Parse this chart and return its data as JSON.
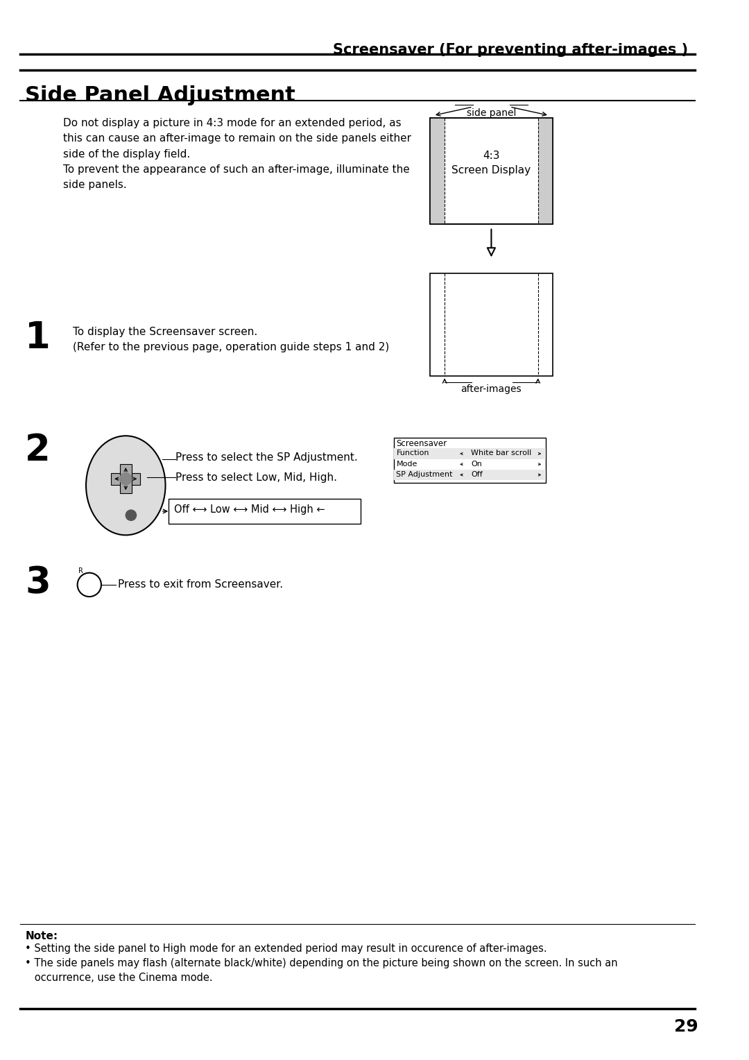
{
  "page_title": "Screensaver (For preventing after-images )",
  "section_title": "Side Panel Adjustment",
  "bg_color": "#ffffff",
  "text_color": "#000000",
  "body_text_1": "Do not display a picture in 4:3 mode for an extended period, as\nthis can cause an after-image to remain on the side panels either\nside of the display field.\nTo prevent the appearance of such an after-image, illuminate the\nside panels.",
  "step1_num": "1",
  "step1_text": "To display the Screensaver screen.\n(Refer to the previous page, operation guide steps 1 and 2)",
  "step2_num": "2",
  "step2_text_a": "Press to select the SP Adjustment.",
  "step2_text_b": "Press to select Low, Mid, High.",
  "step2_text_c": "Off ⟷ Low ⟷ Mid ⟷ High ←",
  "step3_num": "3",
  "step3_text": "Press to exit from Screensaver.",
  "note_title": "Note:",
  "note_1": "• Setting the side panel to High mode for an extended period may result in occurence of after-images.",
  "note_2": "• The side panels may flash (alternate black/white) depending on the picture being shown on the screen. In such an\n   occurrence, use the Cinema mode.",
  "page_num": "29",
  "screensaver_menu": {
    "title": "Screensaver",
    "rows": [
      {
        "label": "Function",
        "value": "White bar scroll"
      },
      {
        "label": "Mode",
        "value": "On"
      },
      {
        "label": "SP Adjustment",
        "value": "Off"
      }
    ]
  }
}
